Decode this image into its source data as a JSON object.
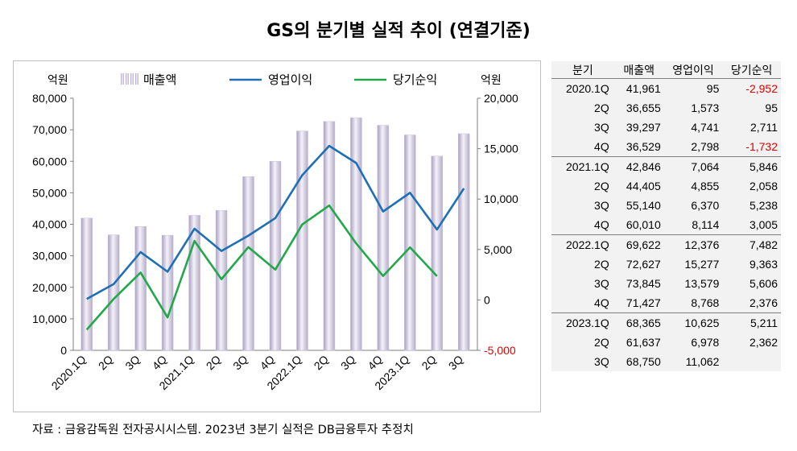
{
  "title": "GS의 분기별 실적 추이 (연결기준)",
  "source_note": "자료 : 금융감독원 전자공시시스템. 2023년 3분기 실적은 DB금융투자 추정치",
  "colors": {
    "revenue_bar": "#c9c3d9",
    "operating_profit_line": "#1f6fb4",
    "net_income_line": "#22a84a",
    "negative_text": "#e00000"
  },
  "chart_data": {
    "type": "bar",
    "left_axis_unit": "억원",
    "right_axis_unit": "억원",
    "legend": [
      "매출액",
      "영업이익",
      "당기순익"
    ],
    "categories": [
      "2020.1Q",
      "2Q",
      "3Q",
      "4Q",
      "2021.1Q",
      "2Q",
      "3Q",
      "4Q",
      "2022.1Q",
      "2Q",
      "3Q",
      "4Q",
      "2023.1Q",
      "2Q",
      "3Q"
    ],
    "ylim_left": [
      0,
      80000
    ],
    "ylim_right": [
      -5000,
      20000
    ],
    "left_ticks": [
      "80,000",
      "70,000",
      "60,000",
      "50,000",
      "40,000",
      "30,000",
      "20,000",
      "10,000",
      "0"
    ],
    "right_ticks": [
      "20,000",
      "15,000",
      "10,000",
      "5,000",
      "0",
      "-5,000"
    ],
    "series": [
      {
        "name": "매출액",
        "type": "bar",
        "axis": "left",
        "values": [
          41961,
          36655,
          39297,
          36529,
          42846,
          44405,
          55140,
          60010,
          69622,
          72627,
          73845,
          71427,
          68365,
          61637,
          68750
        ]
      },
      {
        "name": "영업이익",
        "type": "line",
        "axis": "right",
        "values": [
          95,
          1573,
          4741,
          2798,
          7064,
          4855,
          6370,
          8114,
          12376,
          15277,
          13579,
          8768,
          10625,
          6978,
          11062
        ]
      },
      {
        "name": "당기순익",
        "type": "line",
        "axis": "right",
        "values": [
          -2952,
          95,
          2711,
          -1732,
          5846,
          2058,
          5238,
          3005,
          7482,
          9363,
          5606,
          2376,
          5211,
          2362,
          null
        ]
      }
    ],
    "grid": false,
    "legend_position": "top"
  },
  "table": {
    "headers": [
      "분기",
      "매출액",
      "영업이익",
      "당기순익"
    ],
    "rows": [
      [
        "2020.1Q",
        "41,961",
        "95",
        "-2,952"
      ],
      [
        "2Q",
        "36,655",
        "1,573",
        "95"
      ],
      [
        "3Q",
        "39,297",
        "4,741",
        "2,711"
      ],
      [
        "4Q",
        "36,529",
        "2,798",
        "-1,732"
      ],
      [
        "2021.1Q",
        "42,846",
        "7,064",
        "5,846"
      ],
      [
        "2Q",
        "44,405",
        "4,855",
        "2,058"
      ],
      [
        "3Q",
        "55,140",
        "6,370",
        "5,238"
      ],
      [
        "4Q",
        "60,010",
        "8,114",
        "3,005"
      ],
      [
        "2022.1Q",
        "69,622",
        "12,376",
        "7,482"
      ],
      [
        "2Q",
        "72,627",
        "15,277",
        "9,363"
      ],
      [
        "3Q",
        "73,845",
        "13,579",
        "5,606"
      ],
      [
        "4Q",
        "71,427",
        "8,768",
        "2,376"
      ],
      [
        "2023.1Q",
        "68,365",
        "10,625",
        "5,211"
      ],
      [
        "2Q",
        "61,637",
        "6,978",
        "2,362"
      ],
      [
        "3Q",
        "68,750",
        "11,062",
        ""
      ]
    ]
  }
}
